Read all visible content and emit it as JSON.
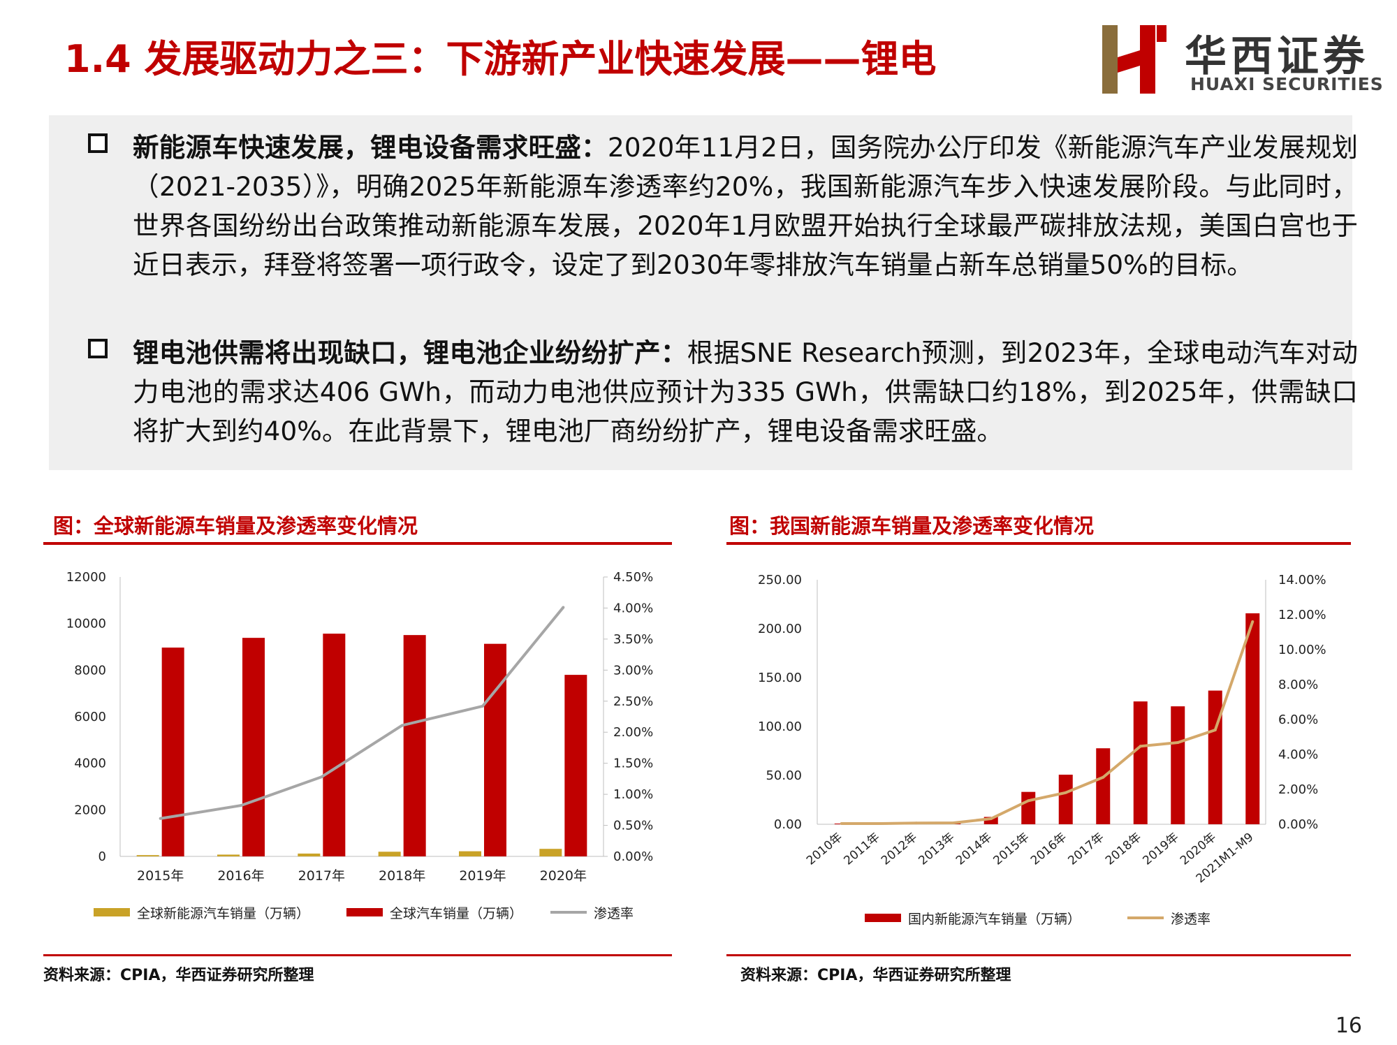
{
  "title": "1.4 发展驱动力之三：下游新产业快速发展——锂电",
  "logo": {
    "cn": "华西证券",
    "en": "HUAXI SECURITIES"
  },
  "bullets": [
    {
      "head": "新能源车快速发展，锂电设备需求旺盛：",
      "body": "2020年11月2日，国务院办公厅印发《新能源汽车产业发展规划（2021-2035）》，明确2025年新能源车渗透率约20%，我国新能源汽车步入快速发展阶段。与此同时，世界各国纷纷出台政策推动新能源车发展，2020年1月欧盟开始执行全球最严碳排放法规，美国白宫也于近日表示，拜登将签署一项行政令，设定了到2030年零排放汽车销量占新车总销量50%的目标。"
    },
    {
      "head": "锂电池供需将出现缺口，锂电池企业纷纷扩产：",
      "body": "根据SNE Research预测，到2023年，全球电动汽车对动力电池的需求达406 GWh，而动力电池供应预计为335 GWh，供需缺口约18%，到2025年，供需缺口将扩大到约40%。在此背景下，锂电池厂商纷纷扩产，锂电设备需求旺盛。"
    }
  ],
  "left": {
    "caption": "图：全球新能源车销量及渗透率变化情况",
    "source": "资料来源：CPIA，华西证券研究所整理"
  },
  "right": {
    "caption": "图：我国新能源车销量及渗透率变化情况",
    "source": "资料来源：CPIA，华西证券研究所整理"
  },
  "page_number": "16",
  "colors": {
    "accent": "#c00000",
    "gold": "#c9a227",
    "gray": "#a6a6a6",
    "tan": "#d4a86a"
  },
  "chart_data": [
    {
      "type": "bar",
      "categories": [
        "2015年",
        "2016年",
        "2017年",
        "2018年",
        "2019年",
        "2020年"
      ],
      "series": [
        {
          "name": "全球新能源汽车销量（万辆）",
          "type": "bar",
          "axis": "left",
          "values": [
            55,
            77,
            122,
            201,
            221,
            324
          ]
        },
        {
          "name": "全球汽车销量（万辆）",
          "type": "bar",
          "axis": "left",
          "values": [
            8968,
            9386,
            9566,
            9506,
            9130,
            7797
          ]
        },
        {
          "name": "渗透率",
          "type": "line",
          "axis": "right",
          "values": [
            0.0061,
            0.0082,
            0.0128,
            0.0211,
            0.0242,
            0.0401
          ]
        }
      ],
      "ylim": [
        0,
        12000
      ],
      "yticks": [
        "0",
        "2000",
        "4000",
        "6000",
        "8000",
        "10000",
        "12000"
      ],
      "y2lim": [
        0,
        0.045
      ],
      "y2ticks": [
        "0.00%",
        "0.50%",
        "1.00%",
        "1.50%",
        "2.00%",
        "2.50%",
        "3.00%",
        "3.50%",
        "4.00%",
        "4.50%"
      ],
      "legend": "bottom",
      "grid": false
    },
    {
      "type": "bar",
      "categories": [
        "2010年",
        "2011年",
        "2012年",
        "2013年",
        "2014年",
        "2015年",
        "2016年",
        "2017年",
        "2018年",
        "2019年",
        "2020年",
        "2021M1-M9"
      ],
      "series": [
        {
          "name": "国内新能源汽车销量（万辆）",
          "type": "bar",
          "axis": "left",
          "values": [
            0.7,
            0.8,
            1.3,
            1.8,
            7.5,
            33.1,
            50.7,
            77.7,
            125.6,
            120.6,
            136.7,
            215.7
          ]
        },
        {
          "name": "渗透率",
          "type": "line",
          "axis": "right",
          "values": [
            0.0004,
            0.0004,
            0.0007,
            0.0008,
            0.0032,
            0.0135,
            0.0181,
            0.0269,
            0.0447,
            0.0468,
            0.054,
            0.116
          ]
        }
      ],
      "ylim": [
        0,
        250
      ],
      "yticks": [
        "0.00",
        "50.00",
        "100.00",
        "150.00",
        "200.00",
        "250.00"
      ],
      "y2lim": [
        0,
        0.14
      ],
      "y2ticks": [
        "0.00%",
        "2.00%",
        "4.00%",
        "6.00%",
        "8.00%",
        "10.00%",
        "12.00%",
        "14.00%"
      ],
      "legend": "bottom",
      "grid": false
    }
  ]
}
